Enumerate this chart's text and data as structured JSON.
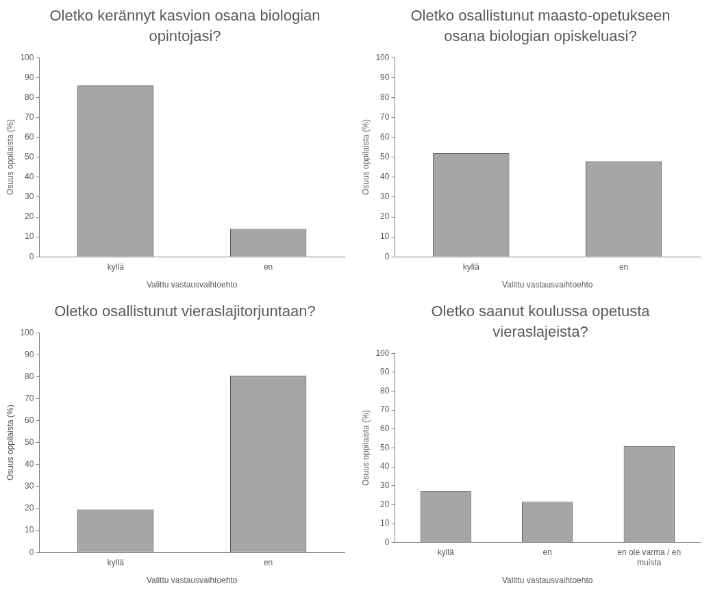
{
  "chart_data": [
    {
      "type": "bar",
      "title": "Oletko kerännyt kasvion osana biologian opintojasi?",
      "xlabel": "Valittu vastausvaihtoehto",
      "ylabel": "Osuus oppilaista (%)",
      "categories": [
        "kyllä",
        "en"
      ],
      "values": [
        86,
        14
      ],
      "color": "#a6a6a6",
      "ylim": [
        0,
        100
      ],
      "yticks": [
        0,
        10,
        20,
        30,
        40,
        50,
        60,
        70,
        80,
        90,
        100
      ],
      "grid": false,
      "legend": false
    },
    {
      "type": "bar",
      "title": "Oletko osallistunut maasto-opetukseen osana biologian opiskeluasi?",
      "xlabel": "Valittu vastausvaihtoehto",
      "ylabel": "Osuus oppilaista (%)",
      "categories": [
        "kyllä",
        "en"
      ],
      "values": [
        52,
        48
      ],
      "color": "#a6a6a6",
      "ylim": [
        0,
        100
      ],
      "yticks": [
        0,
        10,
        20,
        30,
        40,
        50,
        60,
        70,
        80,
        90,
        100
      ],
      "grid": false,
      "legend": false
    },
    {
      "type": "bar",
      "title": "Oletko osallistunut vieraslajitorjuntaan?",
      "xlabel": "Valittu vastausvaihtoehto",
      "ylabel": "Osuus oppilaista (%)",
      "categories": [
        "kyllä",
        "en"
      ],
      "values": [
        19.5,
        80.5
      ],
      "color": "#a6a6a6",
      "ylim": [
        0,
        100
      ],
      "yticks": [
        0,
        10,
        20,
        30,
        40,
        50,
        60,
        70,
        80,
        90,
        100
      ],
      "grid": false,
      "legend": false
    },
    {
      "type": "bar",
      "title": "Oletko saanut koulussa opetusta vieraslajeista?",
      "xlabel": "Valittu vastausvaihtoehto",
      "ylabel": "Osuus oppilaista (%)",
      "categories": [
        "kyllä",
        "en",
        "en ole varma / en muista"
      ],
      "values": [
        27,
        21.5,
        51
      ],
      "color": "#a6a6a6",
      "ylim": [
        0,
        100
      ],
      "yticks": [
        0,
        10,
        20,
        30,
        40,
        50,
        60,
        70,
        80,
        90,
        100
      ],
      "grid": false,
      "legend": false
    }
  ]
}
